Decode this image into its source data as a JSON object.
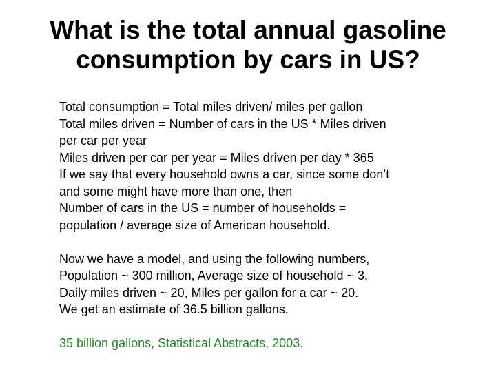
{
  "slide": {
    "title_lines": [
      "What is the total annual gasoline",
      "consumption by cars in US?"
    ],
    "model_lines": [
      "Total consumption = Total miles driven/ miles per gallon",
      "Total miles driven = Number of cars in the US * Miles driven",
      "per car per year",
      "Miles driven per car per year = Miles driven per day * 365",
      "If we say that every household owns a car, since some don’t",
      "and some might have more than one, then",
      "Number of cars in the US = number of households =",
      "population / average size of American household."
    ],
    "estimate_lines": [
      "Now we have a model, and using the following numbers,",
      "Population ~ 300 million, Average size of household ~ 3,",
      "Daily miles driven ~ 20, Miles per gallon for a car ~ 20.",
      "We get an estimate of 36.5 billion gallons."
    ],
    "source_line": "35 billion gallons, Statistical Abstracts, 2003.",
    "colors": {
      "text": "#000000",
      "source": "#228b22",
      "background": "#ffffff"
    }
  }
}
